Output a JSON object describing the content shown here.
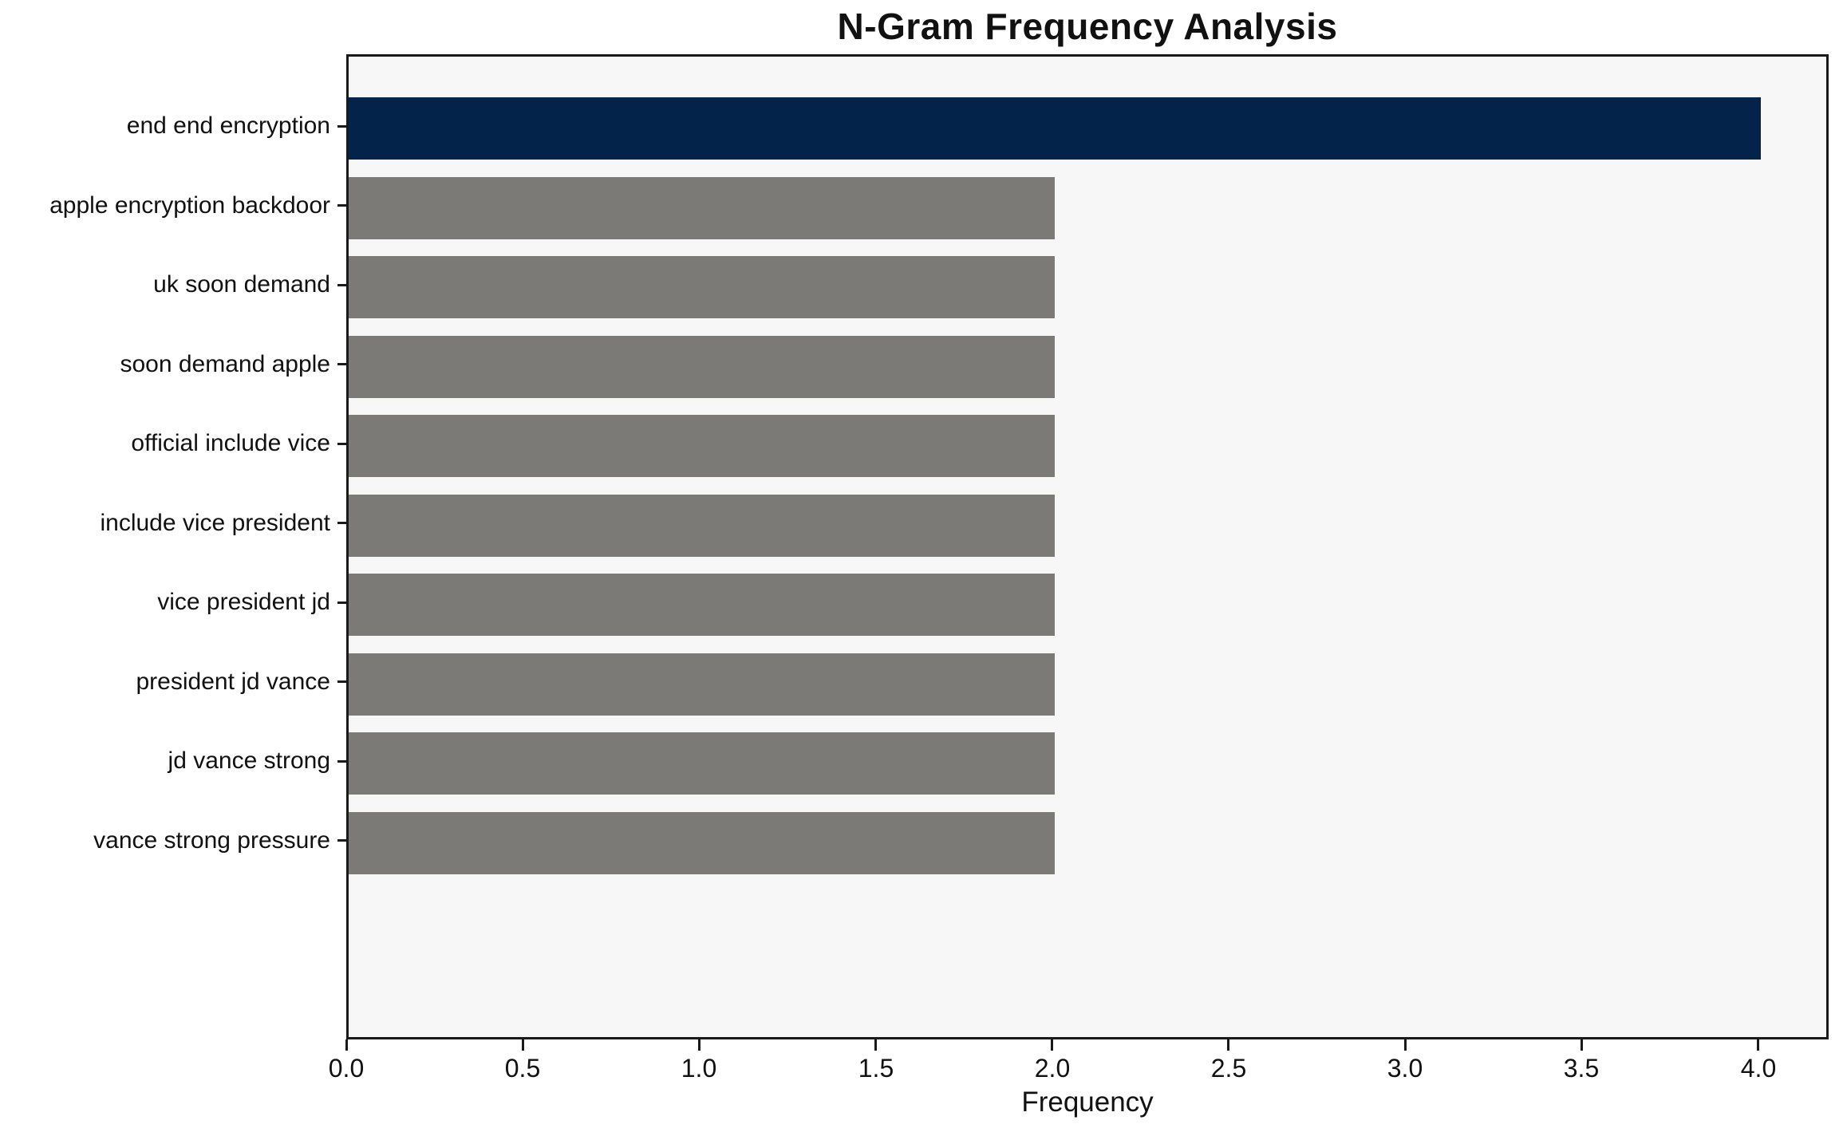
{
  "title": "N-Gram Frequency Analysis",
  "chart_data": {
    "type": "bar",
    "orientation": "horizontal",
    "title": "N-Gram Frequency Analysis",
    "xlabel": "Frequency",
    "ylabel": "",
    "categories": [
      "end end encryption",
      "apple encryption backdoor",
      "uk soon demand",
      "soon demand apple",
      "official include vice",
      "include vice president",
      "vice president jd",
      "president jd vance",
      "jd vance strong",
      "vance strong pressure"
    ],
    "values": [
      4,
      2,
      2,
      2,
      2,
      2,
      2,
      2,
      2,
      2
    ],
    "xlim": [
      0,
      4.2
    ],
    "x_ticks": [
      0.0,
      0.5,
      1.0,
      1.5,
      2.0,
      2.5,
      3.0,
      3.5,
      4.0
    ],
    "x_tick_labels": [
      "0.0",
      "0.5",
      "1.0",
      "1.5",
      "2.0",
      "2.5",
      "3.0",
      "3.5",
      "4.0"
    ],
    "highlight_index": 0,
    "colors": {
      "highlight_bar": "#03234a",
      "default_bar": "#7c7a77",
      "plot_background": "#f7f7f8",
      "spine": "#1a1a1a",
      "text": "#111111"
    },
    "grid": false,
    "legend": null
  }
}
